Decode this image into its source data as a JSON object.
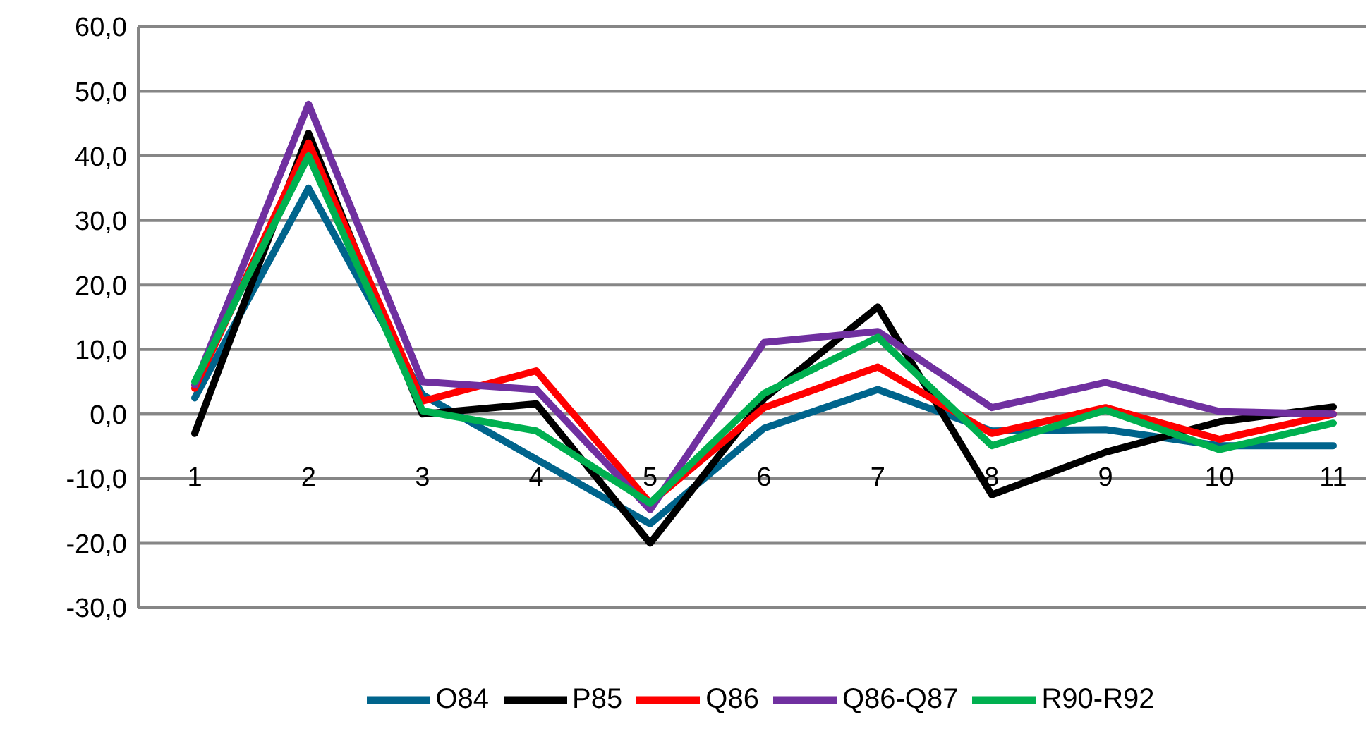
{
  "chart_data": {
    "type": "line",
    "categories": [
      "1",
      "2",
      "3",
      "4",
      "5",
      "6",
      "7",
      "8",
      "9",
      "10",
      "11"
    ],
    "series": [
      {
        "name": "O84",
        "color": "#00648c",
        "values": [
          2.5,
          35,
          3,
          -7,
          -17,
          -2.2,
          3.8,
          -2.6,
          -2.4,
          -4.9,
          -4.9
        ]
      },
      {
        "name": "P85",
        "color": "#000000",
        "values": [
          -3,
          43.5,
          0,
          1.6,
          -20,
          2.4,
          16.6,
          -12.5,
          -5.9,
          -1.2,
          1.1
        ]
      },
      {
        "name": "Q86",
        "color": "#ff0000",
        "values": [
          4,
          42,
          2,
          6.7,
          -13.8,
          1,
          7.3,
          -3,
          1,
          -3.9,
          0
        ]
      },
      {
        "name": "Q86-Q87",
        "color": "#7030a0",
        "values": [
          4.5,
          48,
          5,
          3.8,
          -14.8,
          11.1,
          12.8,
          1,
          4.9,
          0.4,
          0
        ]
      },
      {
        "name": "R90-R92",
        "color": "#00b050",
        "values": [
          5,
          40,
          0.5,
          -2.6,
          -13.8,
          3.2,
          11.9,
          -4.9,
          0.6,
          -5.5,
          -1.4
        ]
      }
    ],
    "ylim": [
      -30,
      60
    ],
    "yticks": [
      {
        "value": -30,
        "label": "-30,0"
      },
      {
        "value": -20,
        "label": "-20,0"
      },
      {
        "value": -10,
        "label": "-10,0"
      },
      {
        "value": 0,
        "label": "0,0"
      },
      {
        "value": 10,
        "label": "10,0"
      },
      {
        "value": 20,
        "label": "20,0"
      },
      {
        "value": 30,
        "label": "30,0"
      },
      {
        "value": 40,
        "label": "40,0"
      },
      {
        "value": 50,
        "label": "50,0"
      },
      {
        "value": 60,
        "label": "60,0"
      }
    ],
    "grid": "y",
    "legend": "bottom",
    "marker": "none",
    "line_style": "solid"
  }
}
